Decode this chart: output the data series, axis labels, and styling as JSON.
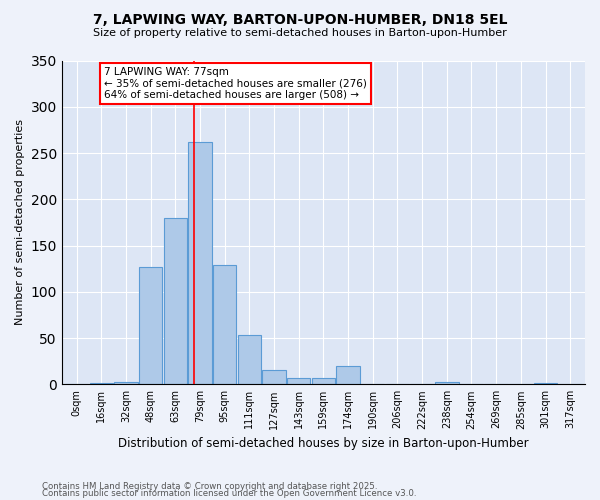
{
  "title": "7, LAPWING WAY, BARTON-UPON-HUMBER, DN18 5EL",
  "subtitle": "Size of property relative to semi-detached houses in Barton-upon-Humber",
  "xlabel": "Distribution of semi-detached houses by size in Barton-upon-Humber",
  "ylabel": "Number of semi-detached properties",
  "bin_labels": [
    "0sqm",
    "16sqm",
    "32sqm",
    "48sqm",
    "63sqm",
    "79sqm",
    "95sqm",
    "111sqm",
    "127sqm",
    "143sqm",
    "159sqm",
    "174sqm",
    "190sqm",
    "206sqm",
    "222sqm",
    "238sqm",
    "254sqm",
    "269sqm",
    "285sqm",
    "301sqm",
    "317sqm"
  ],
  "bar_values": [
    0,
    1,
    3,
    127,
    180,
    262,
    129,
    53,
    15,
    7,
    7,
    20,
    0,
    0,
    0,
    2,
    0,
    0,
    0,
    1,
    0
  ],
  "bar_color": "#aec9e8",
  "bar_edge_color": "#5b9bd5",
  "property_line_x": 4.75,
  "annotation_text": "7 LAPWING WAY: 77sqm\n← 35% of semi-detached houses are smaller (276)\n64% of semi-detached houses are larger (508) →",
  "ylim": [
    0,
    350
  ],
  "yticks": [
    0,
    50,
    100,
    150,
    200,
    250,
    300,
    350
  ],
  "background_color": "#eef2fa",
  "plot_bg_color": "#dde6f5",
  "grid_color": "#ffffff",
  "footnote1": "Contains HM Land Registry data © Crown copyright and database right 2025.",
  "footnote2": "Contains public sector information licensed under the Open Government Licence v3.0."
}
